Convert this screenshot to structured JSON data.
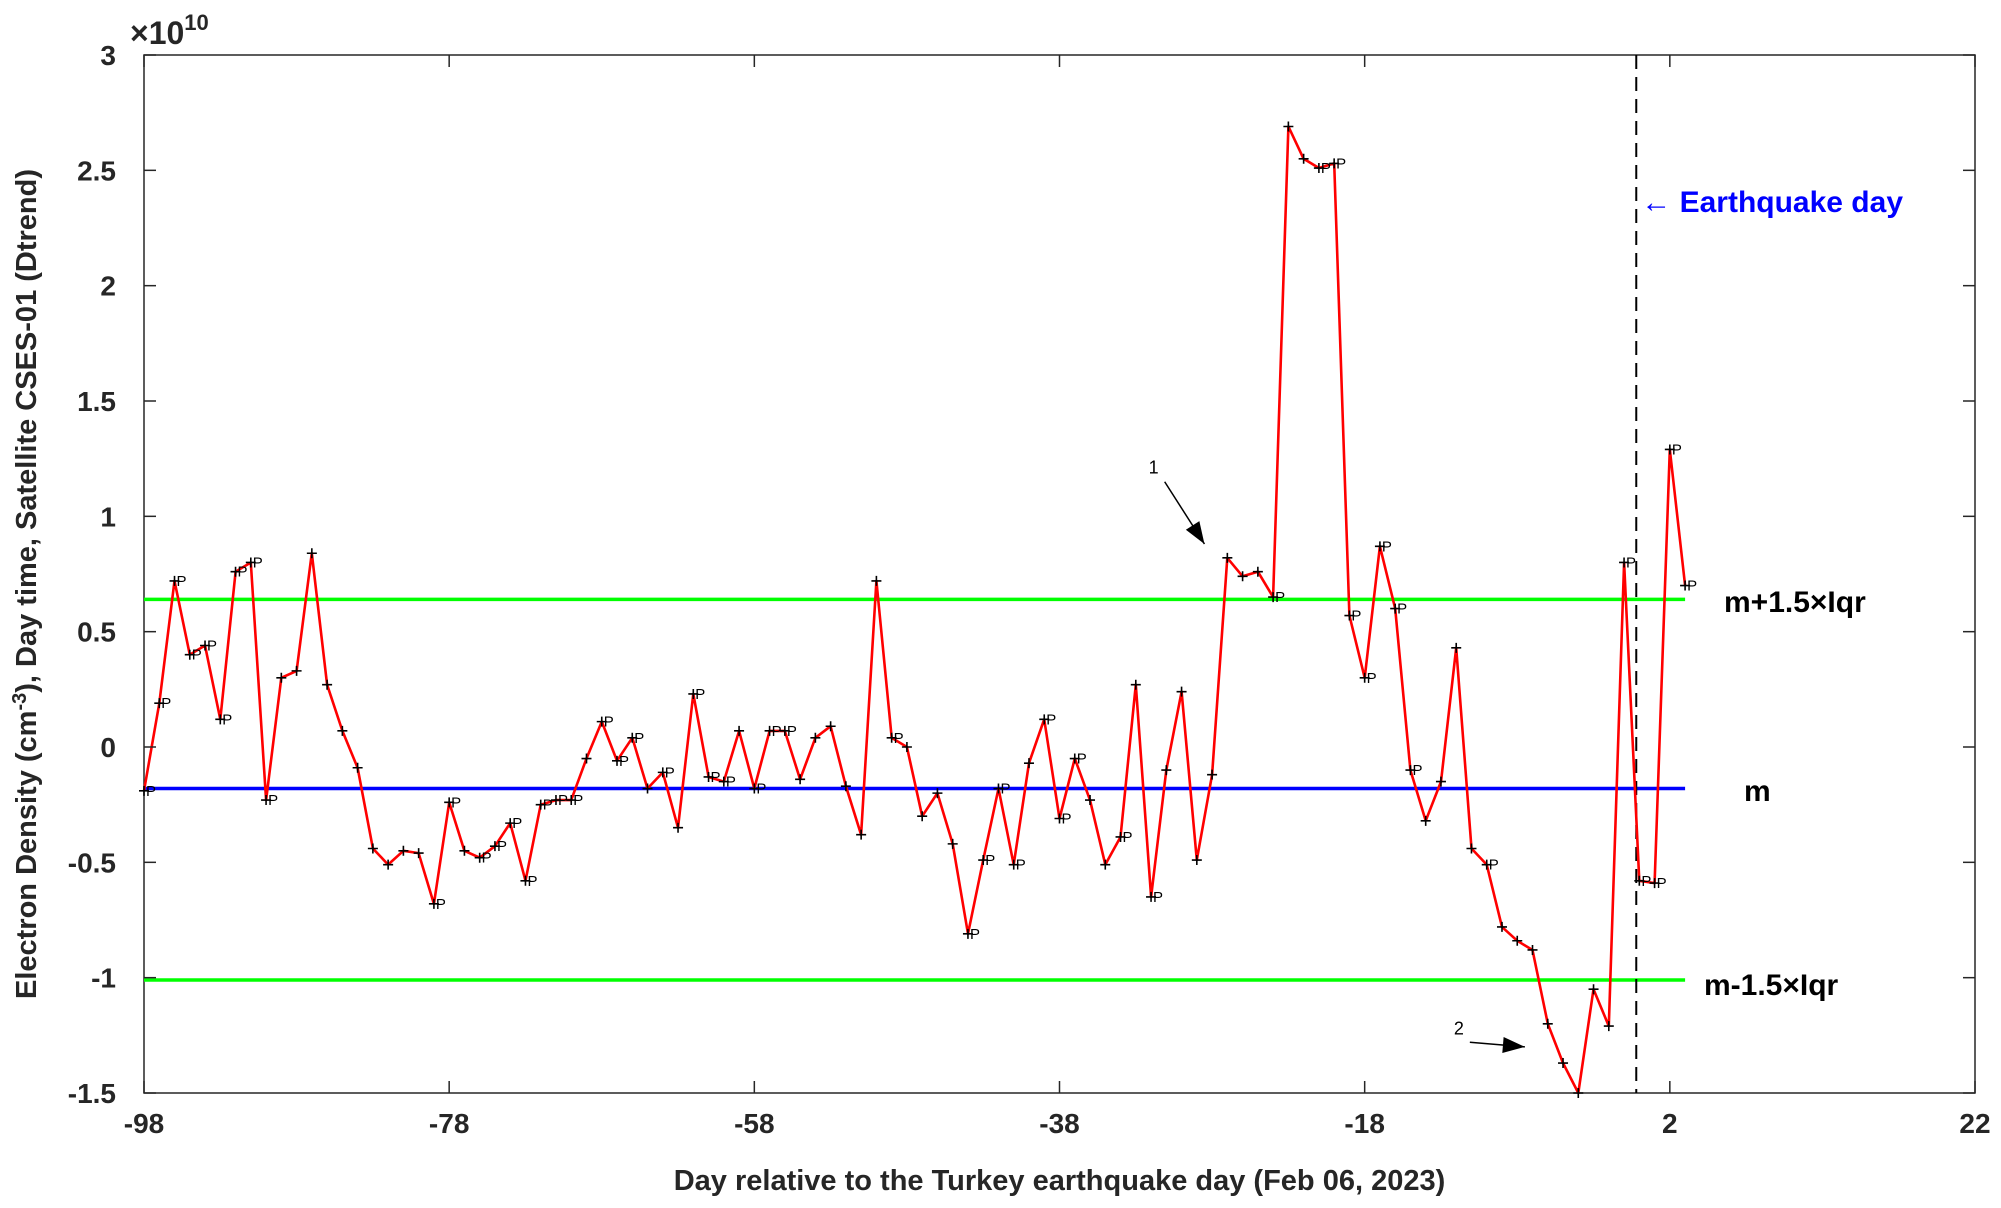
{
  "chart_data": {
    "type": "line",
    "xlabel": "Day relative to the Turkey earthquake day (Feb 06, 2023)",
    "ylabel": "Electron Density (cm^-3), Day time, Satellite CSES-01 (Dtrend)",
    "ylabel_prefix": "Electron Density (cm",
    "ylabel_exp": "-3",
    "ylabel_suffix": "), Day time, Satellite CSES-01 (Dtrend)",
    "y_multiplier": "×10",
    "y_multiplier_base": "×10",
    "y_multiplier_exp": "10",
    "xlim": [
      -98,
      22
    ],
    "ylim": [
      -1.5,
      3
    ],
    "xticks": [
      -98,
      -78,
      -58,
      -38,
      -18,
      2,
      22
    ],
    "yticks": [
      -1.5,
      -1,
      -0.5,
      0,
      0.5,
      1,
      1.5,
      2,
      2.5,
      3
    ],
    "ytick_labels": [
      "-1.5",
      "-1",
      "-0.5",
      "0",
      "0.5",
      "1",
      "1.5",
      "2",
      "2.5",
      "3"
    ],
    "grid": false,
    "series": [
      {
        "color": "#ff0000",
        "x": [
          -98,
          -97,
          -96,
          -95,
          -94,
          -93,
          -92,
          -91,
          -90,
          -89,
          -88,
          -87,
          -86,
          -85,
          -84,
          -83,
          -82,
          -81,
          -80,
          -79,
          -78,
          -77,
          -76,
          -75,
          -74,
          -73,
          -72,
          -71,
          -70,
          -69,
          -68,
          -67,
          -66,
          -65,
          -64,
          -63,
          -62,
          -61,
          -60,
          -59,
          -58,
          -57,
          -56,
          -55,
          -54,
          -53,
          -52,
          -51,
          -50,
          -49,
          -48,
          -47,
          -46,
          -45,
          -44,
          -43,
          -42,
          -41,
          -40,
          -39,
          -38,
          -37,
          -36,
          -35,
          -34,
          -33,
          -32,
          -31,
          -30,
          -29,
          -28,
          -27,
          -26,
          -25,
          -24,
          -23,
          -22,
          -21,
          -20,
          -19,
          -18,
          -17,
          -16,
          -15,
          -14,
          -13,
          -12,
          -11,
          -10,
          -9,
          -8,
          -7,
          -6,
          -5,
          -4,
          -3,
          -2,
          -1,
          0,
          1,
          2,
          3
        ],
        "y": [
          -0.19,
          0.19,
          0.72,
          0.4,
          0.44,
          0.12,
          0.76,
          0.8,
          -0.23,
          0.3,
          0.33,
          0.84,
          0.27,
          0.07,
          -0.09,
          -0.44,
          -0.51,
          -0.45,
          -0.46,
          -0.68,
          -0.24,
          -0.45,
          -0.48,
          -0.43,
          -0.33,
          -0.58,
          -0.25,
          -0.23,
          -0.23,
          -0.05,
          0.11,
          -0.06,
          0.04,
          -0.18,
          -0.11,
          -0.35,
          0.23,
          -0.13,
          -0.15,
          0.07,
          -0.18,
          0.07,
          0.07,
          -0.14,
          0.04,
          0.09,
          -0.17,
          -0.38,
          0.72,
          0.04,
          0.0,
          -0.3,
          -0.2,
          -0.42,
          -0.81,
          -0.49,
          -0.18,
          -0.51,
          -0.07,
          0.12,
          -0.31,
          -0.05,
          -0.23,
          -0.51,
          -0.39,
          0.27,
          -0.65,
          -0.1,
          0.24,
          -0.49,
          -0.12,
          0.82,
          0.74,
          0.76,
          0.65,
          2.69,
          2.55,
          2.51,
          2.53,
          0.57,
          0.3,
          0.87,
          0.6,
          -0.1,
          -0.32,
          -0.15,
          0.43,
          -0.44,
          -0.51,
          -0.78,
          -0.84,
          -0.88,
          -1.2,
          -1.37,
          -1.5,
          -1.05,
          -1.21,
          0.8,
          -0.58,
          -0.59,
          1.29,
          0.7
        ],
        "marker_labels": [
          {
            "x": -98,
            "text": "P"
          },
          {
            "x": -97,
            "text": "P"
          },
          {
            "x": -96,
            "text": "P"
          },
          {
            "x": -95,
            "text": "P"
          },
          {
            "x": -94,
            "text": "P"
          },
          {
            "x": -93,
            "text": "P"
          },
          {
            "x": -92,
            "text": "P"
          },
          {
            "x": -91,
            "text": "P"
          },
          {
            "x": -90,
            "text": "P"
          },
          {
            "x": -79,
            "text": "P"
          },
          {
            "x": -78,
            "text": "P"
          },
          {
            "x": -76,
            "text": "P"
          },
          {
            "x": -75,
            "text": "P"
          },
          {
            "x": -74,
            "text": "P"
          },
          {
            "x": -73,
            "text": "P"
          },
          {
            "x": -72,
            "text": "P"
          },
          {
            "x": -71,
            "text": "P"
          },
          {
            "x": -70,
            "text": "P"
          },
          {
            "x": -68,
            "text": "P"
          },
          {
            "x": -67,
            "text": "P"
          },
          {
            "x": -66,
            "text": "P"
          },
          {
            "x": -64,
            "text": "P"
          },
          {
            "x": -62,
            "text": "P"
          },
          {
            "x": -61,
            "text": "P"
          },
          {
            "x": -60,
            "text": "P"
          },
          {
            "x": -58,
            "text": "P"
          },
          {
            "x": -57,
            "text": "P"
          },
          {
            "x": -56,
            "text": "P"
          },
          {
            "x": -49,
            "text": "P"
          },
          {
            "x": -44,
            "text": "P"
          },
          {
            "x": -43,
            "text": "P"
          },
          {
            "x": -42,
            "text": "P"
          },
          {
            "x": -41,
            "text": "P"
          },
          {
            "x": -39,
            "text": "P"
          },
          {
            "x": -38,
            "text": "P"
          },
          {
            "x": -37,
            "text": "P"
          },
          {
            "x": -34,
            "text": "P"
          },
          {
            "x": -32,
            "text": "P"
          },
          {
            "x": -24,
            "text": "P"
          },
          {
            "x": -21,
            "text": "P"
          },
          {
            "x": -20,
            "text": "P"
          },
          {
            "x": -19,
            "text": "P"
          },
          {
            "x": -18,
            "text": "P"
          },
          {
            "x": -17,
            "text": "P"
          },
          {
            "x": -16,
            "text": "P"
          },
          {
            "x": -15,
            "text": "P"
          },
          {
            "x": -10,
            "text": "P"
          },
          {
            "x": -1,
            "text": "P"
          },
          {
            "x": 0,
            "text": "P"
          },
          {
            "x": 1,
            "text": "P"
          },
          {
            "x": 2,
            "text": "P"
          },
          {
            "x": 3,
            "text": "P"
          }
        ]
      }
    ],
    "hlines": [
      {
        "y": 0.64,
        "color": "#00ff00",
        "x_end": 3,
        "label": "m+1.5×Iqr"
      },
      {
        "y": -0.18,
        "color": "#0000ff",
        "x_end": 3,
        "label": "m"
      },
      {
        "y": -1.01,
        "color": "#00ff00",
        "x_end": 3,
        "label": "m-1.5×Iqr"
      }
    ],
    "vline": {
      "x": -0.2,
      "color": "#000000",
      "style": "dashed"
    },
    "annotations": [
      {
        "text": "←  Earthquake day",
        "color": "#0000ff"
      },
      {
        "text": "1",
        "x": -31.5,
        "y": 1.15,
        "arrow_to": [
          -28.5,
          0.88
        ]
      },
      {
        "text": "2",
        "x": -11.5,
        "y": -1.28,
        "arrow_to": [
          -7.5,
          -1.3
        ]
      }
    ]
  }
}
